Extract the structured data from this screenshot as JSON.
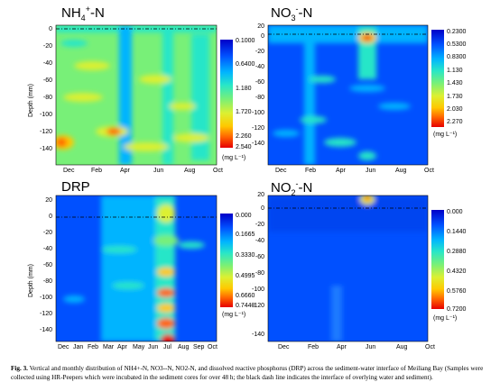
{
  "panels": [
    {
      "id": "nh4",
      "title": "NH4+-N",
      "colorbar_ticks": [
        "0.1000",
        "0.6400",
        "1.180",
        "1.720",
        "2.260",
        "2.540"
      ],
      "unit": "(mg L⁻¹)",
      "ylabel": "Depth (mm)",
      "yticks": [
        "0",
        "-20",
        "-40",
        "-60",
        "-80",
        "-100",
        "-120",
        "-140"
      ],
      "xticks": [
        "Dec",
        "Feb",
        "Apr",
        "Jun",
        "Aug",
        "Oct"
      ]
    },
    {
      "id": "no3",
      "title": "NO3--N",
      "colorbar_ticks": [
        "0.2300",
        "0.5300",
        "0.8300",
        "1.130",
        "1.430",
        "1.730",
        "2.030",
        "2.270"
      ],
      "unit": "(mg L⁻¹)",
      "ylabel": "",
      "yticks": [
        "20",
        "0",
        "-20",
        "-40",
        "-60",
        "-80",
        "-100",
        "-120",
        "-140"
      ],
      "xticks": [
        "Dec",
        "Feb",
        "Apr",
        "Jun",
        "Aug",
        "Oct"
      ]
    },
    {
      "id": "drp",
      "title": "DRP",
      "colorbar_ticks": [
        "0.000",
        "0.1665",
        "0.3330",
        "0.4995",
        "0.6660",
        "0.7440"
      ],
      "unit": "(mg L⁻¹)",
      "ylabel": "Depth (mm)",
      "yticks": [
        "20",
        "0",
        "-20",
        "-40",
        "-60",
        "-80",
        "-100",
        "-120",
        "-140"
      ],
      "xticks": [
        "Dec",
        "Jan",
        "Feb",
        "Mar",
        "Apr",
        "May",
        "Jun",
        "Jul",
        "Aug",
        "Sep",
        "Oct"
      ]
    },
    {
      "id": "no2",
      "title": "NO2--N",
      "colorbar_ticks": [
        "0.000",
        "0.1440",
        "0.2880",
        "0.4320",
        "0.5760",
        "0.7200"
      ],
      "unit": "(mg L⁻¹)",
      "ylabel": "",
      "yticks": [
        "20",
        "0",
        "-20",
        "-40",
        "-60",
        "-80",
        "-100",
        "-120",
        "-140"
      ],
      "xticks": [
        "Dec",
        "Feb",
        "Apr",
        "Jun",
        "Aug",
        "Oct"
      ]
    }
  ],
  "caption": {
    "label": "Fig. 3.",
    "text": "Vertical and monthly distribution of NH4+-N, NO3--N, NO2-N, and dissolved reactive phosphorus (DRP) across the sediment-water interface of Meiliang Bay (Samples were collected using HR-Peepers which were incubated in the sediment cores for over 48 h; the black dash line indicates the interface of overlying water and sediment)."
  },
  "colors": {
    "jet": [
      "#0000c8",
      "#0050ff",
      "#00b4ff",
      "#28e6c8",
      "#78f078",
      "#dcf032",
      "#ffc800",
      "#ff6400",
      "#e60000"
    ]
  }
}
